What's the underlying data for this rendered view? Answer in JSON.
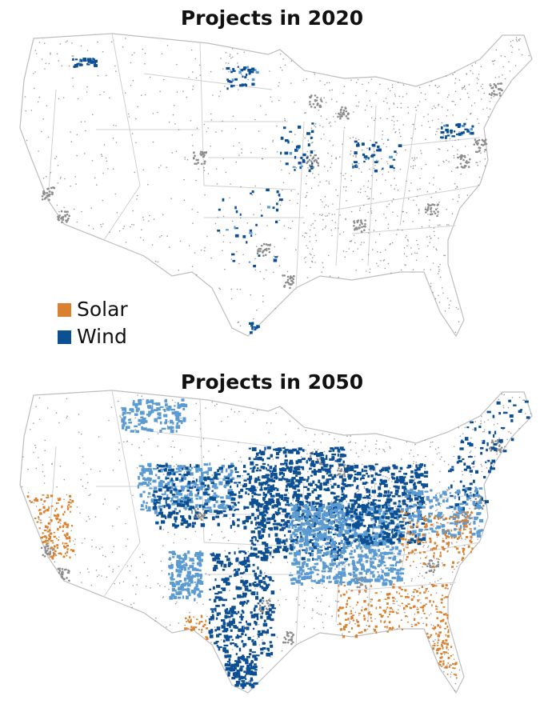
{
  "maps": [
    {
      "title": "Projects in 2020",
      "year": 2020
    },
    {
      "title": "Projects in 2050",
      "year": 2050
    }
  ],
  "legend": [
    {
      "label": "Solar",
      "color": "#d9812e"
    },
    {
      "label": "Wind",
      "color": "#0d4f93"
    }
  ],
  "colors": {
    "background_points": "#9a9a9a",
    "borders": "#c4c4c4",
    "wind_light": "#5b9bd1",
    "solar": "#d9812e",
    "wind": "#0d4f93"
  }
}
